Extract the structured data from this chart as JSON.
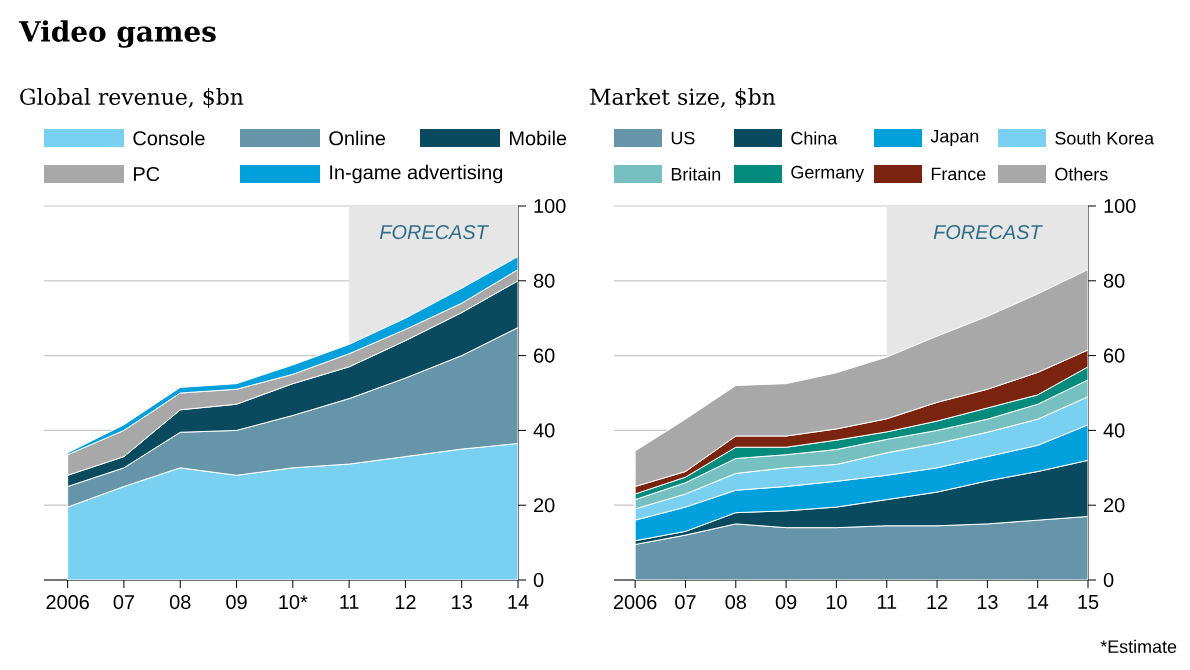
{
  "chart_data": [
    {
      "type": "area",
      "title": "Video games",
      "subtitle": "Global revenue, $bn",
      "stacked": true,
      "legend": "top",
      "grid": "y",
      "categories": [
        "2006",
        "07",
        "08",
        "09",
        "10*",
        "11",
        "12",
        "13",
        "14"
      ],
      "ylim": [
        0,
        100
      ],
      "yticks": [
        0,
        20,
        40,
        60,
        80,
        100
      ],
      "bands": [
        {
          "axis": "x",
          "from": "11",
          "to": "14",
          "label": "FORECAST",
          "color": "#e6e6e6"
        }
      ],
      "series": [
        {
          "name": "Console",
          "color": "#7ad0f0",
          "values": [
            19.5,
            25,
            30,
            28,
            30,
            31,
            33,
            35,
            36.5
          ]
        },
        {
          "name": "Online",
          "color": "#6694a8",
          "values": [
            5.5,
            5,
            9.5,
            12,
            14,
            17.5,
            21,
            25,
            31
          ]
        },
        {
          "name": "Mobile",
          "color": "#0a4a5e",
          "values": [
            3,
            3,
            6,
            7,
            8.5,
            8.5,
            10,
            11.5,
            12.5
          ]
        },
        {
          "name": "PC",
          "color": "#a8a8a8",
          "values": [
            5.5,
            7,
            4.5,
            4,
            2.5,
            3.5,
            3,
            2.5,
            3
          ]
        },
        {
          "name": "In-game advertising",
          "color": "#00a0dc",
          "values": [
            0.5,
            1.5,
            1.5,
            1.5,
            2.5,
            2.5,
            3,
            4,
            3.5
          ]
        }
      ]
    },
    {
      "type": "area",
      "subtitle": "Market size, $bn",
      "stacked": true,
      "legend": "top",
      "grid": "y",
      "categories": [
        "2006",
        "07",
        "08",
        "09",
        "10",
        "11",
        "12",
        "13",
        "14",
        "15"
      ],
      "ylim": [
        0,
        100
      ],
      "yticks": [
        0,
        20,
        40,
        60,
        80,
        100
      ],
      "bands": [
        {
          "axis": "x",
          "from": "11",
          "to": "15",
          "label": "FORECAST",
          "color": "#e6e6e6"
        }
      ],
      "annotations": [
        "*Estimate"
      ],
      "series": [
        {
          "name": "US",
          "color": "#6694a8",
          "values": [
            9.5,
            12,
            15,
            14,
            14,
            14.5,
            14.5,
            15,
            16,
            17
          ]
        },
        {
          "name": "China",
          "color": "#0a4a5e",
          "values": [
            1,
            1,
            3,
            4.5,
            5.5,
            7,
            9,
            11.5,
            13,
            15
          ]
        },
        {
          "name": "Japan",
          "color": "#00a0dc",
          "values": [
            5.5,
            6.5,
            6,
            6.5,
            6.9,
            6.5,
            6.5,
            6.5,
            7,
            9.5
          ]
        },
        {
          "name": "South Korea",
          "color": "#7ad0f0",
          "values": [
            3,
            3.5,
            4.5,
            5,
            4.5,
            6,
            6.5,
            6.5,
            7,
            7.5
          ]
        },
        {
          "name": "Britain",
          "color": "#76c0c1",
          "values": [
            2.5,
            3,
            4,
            3.5,
            4,
            3.6,
            3.5,
            3.5,
            4,
            4.5
          ]
        },
        {
          "name": "Germany",
          "color": "#008b7d",
          "values": [
            1.5,
            1.5,
            3,
            2,
            2.5,
            2,
            2.5,
            3,
            2.5,
            3.5
          ]
        },
        {
          "name": "France",
          "color": "#7a2410",
          "values": [
            2,
            1.5,
            3,
            3,
            3,
            3.5,
            5,
            5,
            6,
            4.5
          ]
        },
        {
          "name": "Others",
          "color": "#a8a8a8",
          "values": [
            9.5,
            14,
            13.5,
            14,
            15,
            16.5,
            17.7,
            19.5,
            21,
            21.5
          ]
        }
      ]
    }
  ]
}
